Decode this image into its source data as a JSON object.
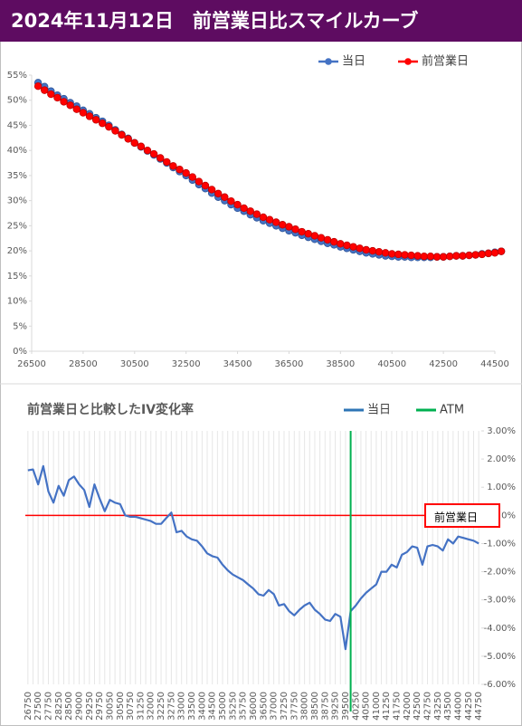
{
  "header": {
    "title": "2024年11月12日　前営業日比スマイルカーブ"
  },
  "chart_data": [
    {
      "type": "line",
      "x": [
        26750,
        27000,
        27250,
        27500,
        27750,
        28000,
        28250,
        28500,
        28750,
        29000,
        29250,
        29500,
        29750,
        30000,
        30250,
        30500,
        30750,
        31000,
        31250,
        31500,
        31750,
        32000,
        32250,
        32500,
        32750,
        33000,
        33250,
        33500,
        33750,
        34000,
        34250,
        34500,
        34750,
        35000,
        35250,
        35500,
        35750,
        36000,
        36250,
        36500,
        36750,
        37000,
        37250,
        37500,
        37750,
        38000,
        38250,
        38500,
        38750,
        39000,
        39250,
        39500,
        39750,
        40000,
        40250,
        40500,
        40750,
        41000,
        41250,
        41500,
        41750,
        42000,
        42250,
        42500,
        42750,
        43000,
        43250,
        43500,
        43750,
        44000,
        44250,
        44500,
        44750
      ],
      "series": [
        {
          "name": "当日",
          "color": "#4472c4",
          "values": [
            53.5,
            52.7,
            51.8,
            51.0,
            50.3,
            49.5,
            48.8,
            48.0,
            47.3,
            46.5,
            45.8,
            45.0,
            44.1,
            43.2,
            42.4,
            41.5,
            40.7,
            39.9,
            39.1,
            38.3,
            37.5,
            36.6,
            35.8,
            35.0,
            34.1,
            33.2,
            32.4,
            31.5,
            30.7,
            30.0,
            29.2,
            28.5,
            27.9,
            27.2,
            26.6,
            26.0,
            25.5,
            25.0,
            24.5,
            24.0,
            23.6,
            23.1,
            22.7,
            22.3,
            21.9,
            21.5,
            21.2,
            20.8,
            20.5,
            20.2,
            19.9,
            19.6,
            19.4,
            19.2,
            19.0,
            18.9,
            18.8,
            18.8,
            18.7,
            18.7,
            18.7,
            18.7,
            18.8,
            18.8,
            18.9,
            19.0,
            19.0,
            19.1,
            19.2,
            19.4,
            19.5,
            19.7,
            19.9
          ]
        },
        {
          "name": "前営業日",
          "color": "#ff0000",
          "values": [
            52.8,
            52.0,
            51.2,
            50.5,
            49.7,
            49.0,
            48.2,
            47.5,
            46.8,
            46.1,
            45.4,
            44.7,
            43.9,
            43.1,
            42.3,
            41.5,
            40.8,
            40.0,
            39.3,
            38.5,
            37.7,
            36.9,
            36.2,
            35.5,
            34.7,
            33.8,
            33.0,
            32.2,
            31.4,
            30.7,
            29.9,
            29.2,
            28.5,
            27.9,
            27.3,
            26.7,
            26.2,
            25.7,
            25.2,
            24.8,
            24.3,
            23.8,
            23.4,
            23.0,
            22.6,
            22.2,
            21.8,
            21.4,
            21.1,
            20.8,
            20.5,
            20.2,
            20.0,
            19.8,
            19.6,
            19.4,
            19.3,
            19.2,
            19.1,
            19.0,
            18.9,
            18.9,
            18.8,
            18.8,
            18.9,
            19.0,
            19.0,
            19.1,
            19.2,
            19.3,
            19.5,
            19.6,
            19.9
          ]
        }
      ],
      "xlim": [
        26500,
        44500
      ],
      "xticks": [
        26500,
        28500,
        30500,
        32500,
        34500,
        36500,
        38500,
        40500,
        42500,
        44500
      ],
      "ylim": [
        0,
        55
      ],
      "yticks": [
        {
          "value": 0,
          "label": "0%"
        },
        {
          "value": 5,
          "label": "5%"
        },
        {
          "value": 10,
          "label": "10%"
        },
        {
          "value": 15,
          "label": "15%"
        },
        {
          "value": 20,
          "label": "20%"
        },
        {
          "value": 25,
          "label": "25%"
        },
        {
          "value": 30,
          "label": "30%"
        },
        {
          "value": 35,
          "label": "35%"
        },
        {
          "value": 40,
          "label": "40%"
        },
        {
          "value": 45,
          "label": "45%"
        },
        {
          "value": 50,
          "label": "50%"
        },
        {
          "value": 55,
          "label": "55%"
        }
      ],
      "legend": "top-right"
    },
    {
      "type": "line",
      "title": "前営業日と比較したIV変化率",
      "categories": [
        "26750",
        null,
        "27500",
        null,
        "27750",
        null,
        "28250",
        null,
        "28500",
        null,
        "29000",
        null,
        "29250",
        null,
        "29750",
        null,
        "30050",
        null,
        "30500",
        null,
        "30750",
        null,
        "31250",
        null,
        "32000",
        null,
        "32250",
        null,
        "32750",
        null,
        "33000",
        null,
        "33500",
        null,
        "34000",
        null,
        "34500",
        null,
        "35000",
        null,
        "35250",
        null,
        "35750",
        null,
        "36000",
        null,
        "36500",
        null,
        "37000",
        null,
        "37250",
        null,
        "37750",
        null,
        "38000",
        null,
        "38500",
        null,
        "38750",
        null,
        "39250",
        null,
        "39500",
        null,
        "40250",
        null,
        "40500",
        null,
        "41000",
        null,
        "41250",
        null,
        "41750",
        null,
        "42000",
        null,
        "42500",
        null,
        "42750",
        null,
        "43250",
        null,
        "43500",
        null,
        "44000",
        null,
        "44250",
        null,
        "44750"
      ],
      "series": [
        {
          "name": "当日",
          "color": "#4472c4",
          "legend_color": "#2e75b6",
          "values": [
            1.6,
            1.63,
            1.1,
            1.75,
            0.85,
            0.45,
            1.05,
            0.7,
            1.25,
            1.38,
            1.1,
            0.9,
            0.3,
            1.1,
            0.6,
            0.15,
            0.55,
            0.45,
            0.4,
            0.0,
            -0.05,
            -0.05,
            -0.1,
            -0.15,
            -0.2,
            -0.3,
            -0.3,
            -0.1,
            0.1,
            -0.6,
            -0.55,
            -0.75,
            -0.85,
            -0.9,
            -1.1,
            -1.35,
            -1.45,
            -1.5,
            -1.75,
            -1.95,
            -2.1,
            -2.2,
            -2.3,
            -2.45,
            -2.6,
            -2.8,
            -2.85,
            -2.65,
            -2.8,
            -3.2,
            -3.15,
            -3.4,
            -3.55,
            -3.35,
            -3.2,
            -3.1,
            -3.35,
            -3.5,
            -3.7,
            -3.75,
            -3.5,
            -3.6,
            -4.75,
            -3.4,
            -3.2,
            -2.95,
            -2.75,
            -2.6,
            -2.45,
            -2.0,
            -2.0,
            -1.75,
            -1.85,
            -1.4,
            -1.3,
            -1.1,
            -1.15,
            -1.75,
            -1.1,
            -1.05,
            -1.1,
            -1.25,
            -0.85,
            -1.0,
            -0.75,
            -0.8,
            -0.85,
            -0.9,
            -1.0
          ]
        }
      ],
      "atm": {
        "name": "ATM",
        "color": "#00b050",
        "at": 63
      },
      "reference": {
        "label": "前営業日",
        "value": 0,
        "color": "#ff0000"
      },
      "ylim": [
        -6,
        3
      ],
      "yticks": [
        {
          "value": 3,
          "label": "3.00%"
        },
        {
          "value": 2,
          "label": "2.00%"
        },
        {
          "value": 1,
          "label": "1.00%"
        },
        {
          "value": 0,
          "label": "0%"
        },
        {
          "value": -1,
          "label": "-1.00%"
        },
        {
          "value": -2,
          "label": "-2.00%"
        },
        {
          "value": -3,
          "label": "-3.00%"
        },
        {
          "value": -4,
          "label": "-4.00%"
        },
        {
          "value": -5,
          "label": "-5.00%"
        },
        {
          "value": -6,
          "label": "-6.00%"
        }
      ],
      "grid": "x",
      "legend": "top-right"
    }
  ]
}
